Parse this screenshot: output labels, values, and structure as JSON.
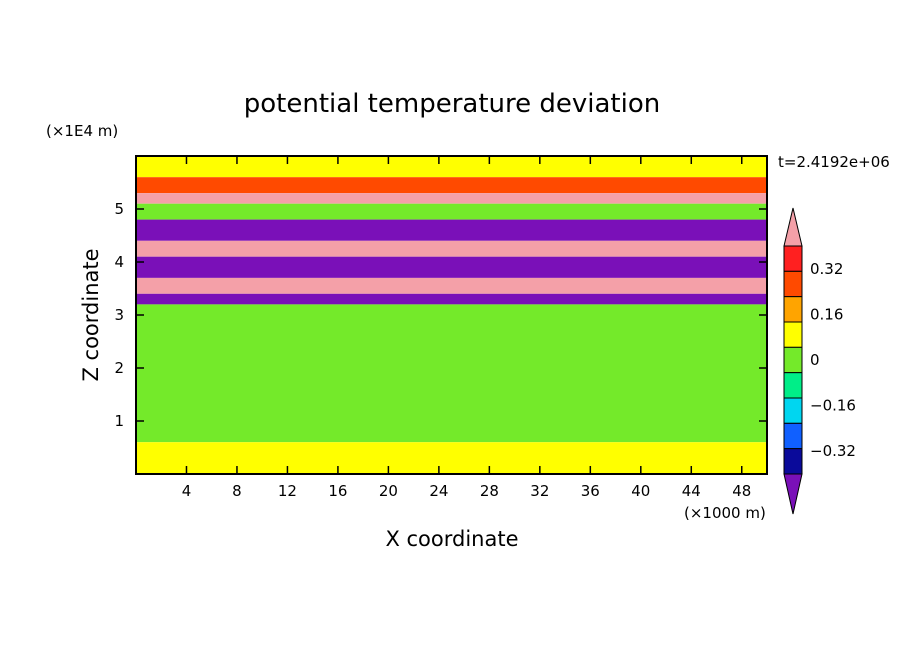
{
  "chart_data": {
    "type": "heatmap",
    "title": "potential temperature deviation",
    "xlabel": "X coordinate",
    "ylabel": "Z coordinate",
    "x_unit": "(×1000 m)",
    "y_unit": "(×1E4 m)",
    "time_label": "t=2.4192e+06",
    "xlim": [
      0,
      50
    ],
    "ylim": [
      0,
      6
    ],
    "x_ticks": [
      4,
      8,
      12,
      16,
      20,
      24,
      28,
      32,
      36,
      40,
      44,
      48
    ],
    "y_ticks": [
      1,
      2,
      3,
      4,
      5
    ],
    "colorbar": {
      "levels": [
        -0.4,
        -0.32,
        -0.24,
        -0.16,
        -0.08,
        0,
        0.08,
        0.16,
        0.24,
        0.32,
        0.4
      ],
      "tick_labels": [
        "0.32",
        "0.16",
        "0",
        "−0.16",
        "−0.32"
      ],
      "tick_values": [
        0.32,
        0.16,
        0,
        -0.16,
        -0.32
      ],
      "colors": [
        "#7a10b8",
        "#0a0a9a",
        "#1060ff",
        "#00d6f0",
        "#00ee88",
        "#74ea2a",
        "#ffff00",
        "#ffa400",
        "#ff4a00",
        "#ff2020",
        "#f4a0a8"
      ],
      "extend": "both"
    },
    "bands": [
      {
        "z0": 5.6,
        "z1": 6.0,
        "value": 0.08
      },
      {
        "z0": 5.3,
        "z1": 5.6,
        "value": 0.24
      },
      {
        "z0": 5.1,
        "z1": 5.3,
        "value": 0.4
      },
      {
        "z0": 4.8,
        "z1": 5.1,
        "value": 0.0
      },
      {
        "z0": 4.4,
        "z1": 4.8,
        "value": -0.4
      },
      {
        "z0": 4.1,
        "z1": 4.4,
        "value": 0.4
      },
      {
        "z0": 3.7,
        "z1": 4.1,
        "value": -0.4
      },
      {
        "z0": 3.4,
        "z1": 3.7,
        "value": 0.4
      },
      {
        "z0": 3.2,
        "z1": 3.4,
        "value": -0.4
      },
      {
        "z0": 0.6,
        "z1": 3.2,
        "value": 0.0
      },
      {
        "z0": 0.0,
        "z1": 0.6,
        "value": 0.08
      }
    ]
  }
}
